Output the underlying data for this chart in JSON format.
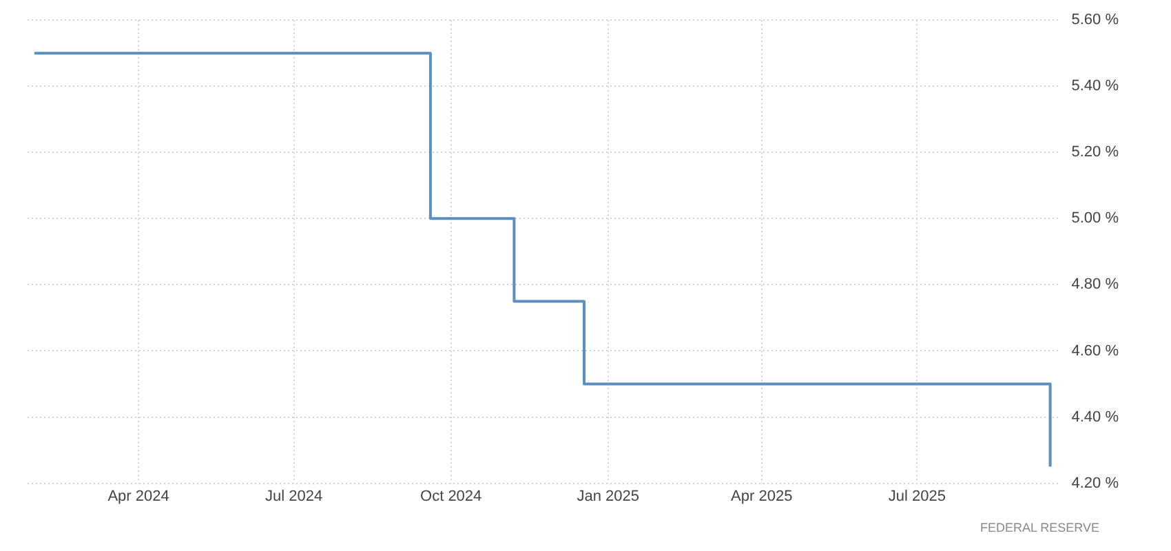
{
  "chart_data": {
    "type": "step",
    "x": [
      "2024-01-31",
      "2024-09-19",
      "2024-11-07",
      "2024-12-18",
      "2025-09-17"
    ],
    "series": [
      {
        "color": "#5b8fc0",
        "values": [
          5.5,
          5.0,
          4.75,
          4.5,
          4.25
        ]
      }
    ],
    "xlim": [
      "2024-01-27",
      "2025-09-23"
    ],
    "xticks": [
      {
        "value": "2024-04-01",
        "label": "Apr 2024"
      },
      {
        "value": "2024-07-01",
        "label": "Jul 2024"
      },
      {
        "value": "2024-10-01",
        "label": "Oct 2024"
      },
      {
        "value": "2025-01-01",
        "label": "Jan 2025"
      },
      {
        "value": "2025-04-01",
        "label": "Apr 2025"
      },
      {
        "value": "2025-07-01",
        "label": "Jul 2025"
      }
    ],
    "ylim": [
      4.2,
      5.6
    ],
    "yticks": [
      {
        "value": 4.2,
        "label": "4.20 %"
      },
      {
        "value": 4.4,
        "label": "4.40 %"
      },
      {
        "value": 4.6,
        "label": "4.60 %"
      },
      {
        "value": 4.8,
        "label": "4.80 %"
      },
      {
        "value": 5.0,
        "label": "5.00 %"
      },
      {
        "value": 5.2,
        "label": "5.20 %"
      },
      {
        "value": 5.4,
        "label": "5.40 %"
      },
      {
        "value": 5.6,
        "label": "5.60 %"
      }
    ],
    "grid": true,
    "legend": false,
    "annotations": [
      "FEDERAL RESERVE"
    ]
  }
}
